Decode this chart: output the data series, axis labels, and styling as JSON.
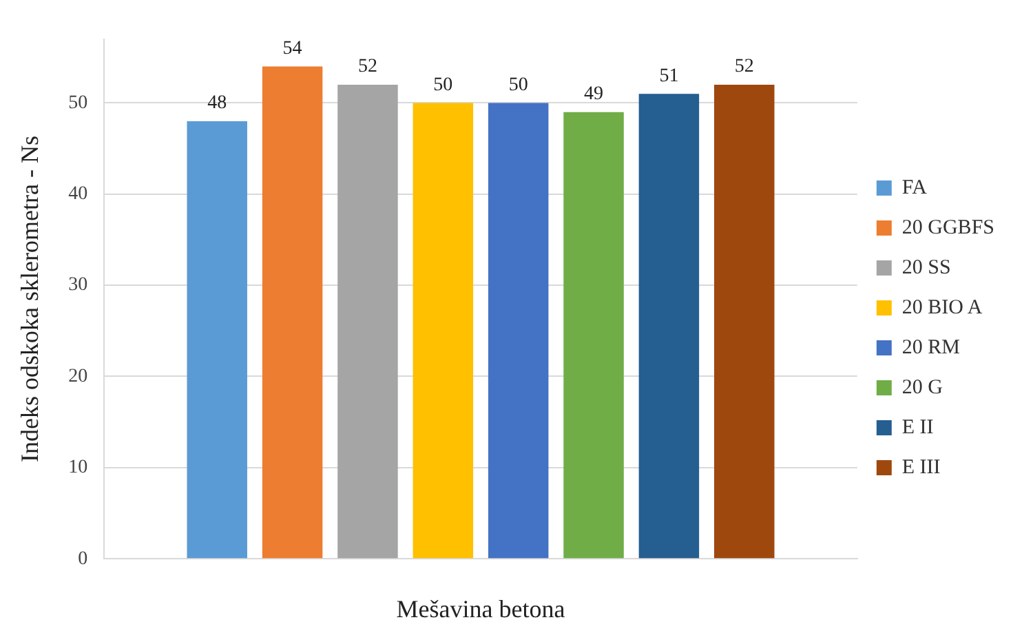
{
  "chart_data": {
    "type": "bar",
    "xlabel": "Mešavina betona",
    "ylabel": "Indeks odskoka sklerometra - Ns",
    "categories": [
      null
    ],
    "series": [
      {
        "name": "FA",
        "color": "#5b9bd5",
        "values": [
          48
        ]
      },
      {
        "name": "20 GGBFS",
        "color": "#ed7d31",
        "values": [
          54
        ]
      },
      {
        "name": "20 SS",
        "color": "#a5a5a5",
        "values": [
          52
        ]
      },
      {
        "name": "20 BIO A",
        "color": "#ffc000",
        "values": [
          50
        ]
      },
      {
        "name": "20 RM",
        "color": "#4472c4",
        "values": [
          50
        ]
      },
      {
        "name": "20 G",
        "color": "#70ad47",
        "values": [
          49
        ]
      },
      {
        "name": "E II",
        "color": "#255e91",
        "values": [
          51
        ]
      },
      {
        "name": "E III",
        "color": "#9e480e",
        "values": [
          52
        ]
      }
    ],
    "ylim": [
      0,
      57
    ],
    "yticks": [
      0,
      10,
      20,
      30,
      40,
      50
    ],
    "grid": "y",
    "legend": "right",
    "data_labels": true
  }
}
